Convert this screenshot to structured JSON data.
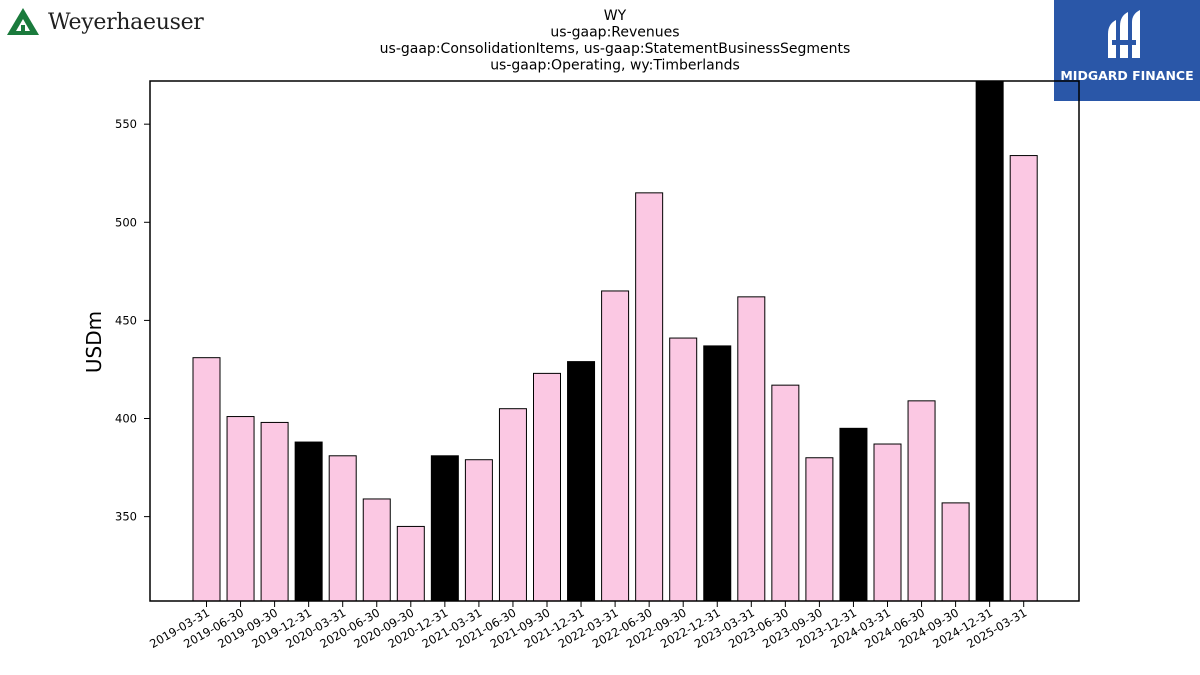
{
  "logos": {
    "left": {
      "name": "Weyerhaeuser",
      "color": "#1a7a3c"
    },
    "right": {
      "name": "MIDGARD FINANCE",
      "bg": "#2a57a8"
    }
  },
  "chart_data": {
    "type": "bar",
    "title_lines": [
      "WY",
      "us-gaap:Revenues",
      "us-gaap:ConsolidationItems, us-gaap:StatementBusinessSegments",
      "us-gaap:Operating, wy:Timberlands"
    ],
    "ylabel": "USDm",
    "xlabel": "",
    "ylim": [
      307,
      572
    ],
    "yticks": [
      350,
      400,
      450,
      500,
      550
    ],
    "categories": [
      "2019-03-31",
      "2019-06-30",
      "2019-09-30",
      "2019-12-31",
      "2020-03-31",
      "2020-06-30",
      "2020-09-30",
      "2020-12-31",
      "2021-03-31",
      "2021-06-30",
      "2021-09-30",
      "2021-12-31",
      "2022-03-31",
      "2022-06-30",
      "2022-09-30",
      "2022-12-31",
      "2023-03-31",
      "2023-06-30",
      "2023-09-30",
      "2023-12-31",
      "2024-03-31",
      "2024-06-30",
      "2024-09-30",
      "2024-12-31",
      "2025-03-31"
    ],
    "values": [
      431,
      401,
      398,
      388,
      381,
      359,
      345,
      381,
      379,
      405,
      423,
      429,
      465,
      515,
      441,
      437,
      462,
      417,
      380,
      395,
      387,
      409,
      357,
      580,
      534
    ],
    "colors": {
      "quarter": "#fbc8e3",
      "year_end": "#000000"
    },
    "bar_kinds": [
      "quarter",
      "quarter",
      "quarter",
      "year_end",
      "quarter",
      "quarter",
      "quarter",
      "year_end",
      "quarter",
      "quarter",
      "quarter",
      "year_end",
      "quarter",
      "quarter",
      "quarter",
      "year_end",
      "quarter",
      "quarter",
      "quarter",
      "year_end",
      "quarter",
      "quarter",
      "quarter",
      "year_end",
      "quarter"
    ],
    "grid": false,
    "legend": "none"
  }
}
